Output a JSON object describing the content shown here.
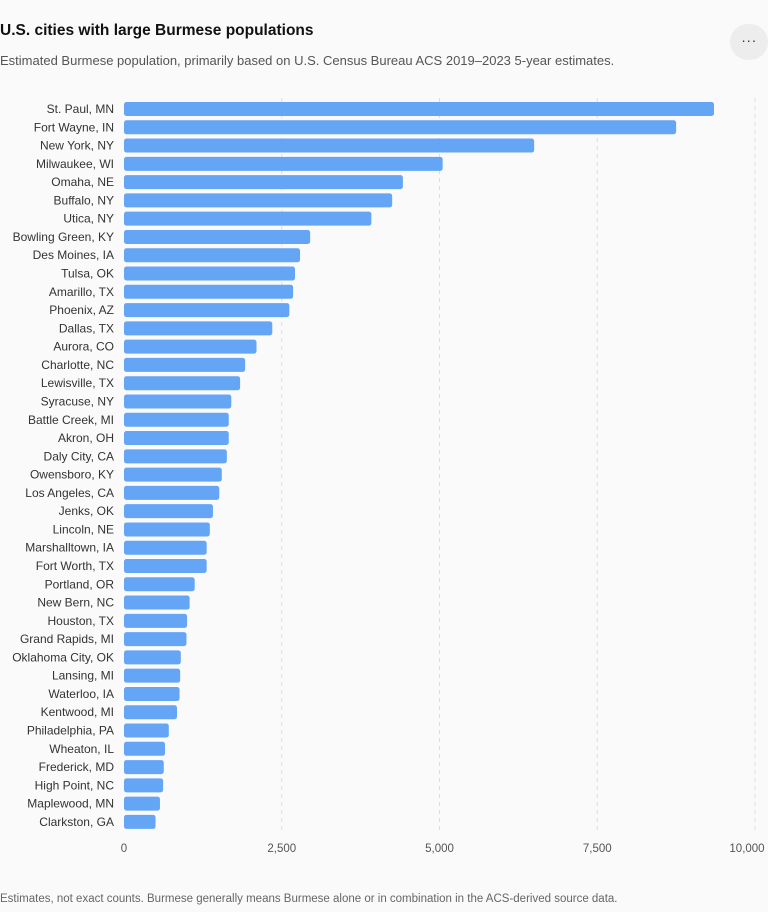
{
  "header": {
    "title": "U.S. cities with large Burmese populations",
    "subtitle": "Estimated Burmese population, primarily based on U.S. Census Bureau ACS 2019–2023 5-year estimates.",
    "more_label": "···"
  },
  "footnote": "Estimates, not exact counts. Burmese generally means Burmese alone or in combination in the ACS-derived source data.",
  "colors": {
    "bar": "#64a5f5",
    "grid": "#dddddd",
    "background": "#fafafa"
  },
  "chart_data": {
    "type": "bar",
    "orientation": "horizontal",
    "title": "U.S. cities with large Burmese populations",
    "xlabel": "",
    "ylabel": "",
    "xlim": [
      0,
      10000
    ],
    "grid": true,
    "x_ticks": [
      0,
      2500,
      5000,
      7500,
      10000
    ],
    "x_tick_labels": [
      "0",
      "2,500",
      "5,000",
      "7,500",
      "10,000"
    ],
    "categories": [
      "St. Paul, MN",
      "Fort Wayne, IN",
      "New York, NY",
      "Milwaukee, WI",
      "Omaha, NE",
      "Buffalo, NY",
      "Utica, NY",
      "Bowling Green, KY",
      "Des Moines, IA",
      "Tulsa, OK",
      "Amarillo, TX",
      "Phoenix, AZ",
      "Dallas, TX",
      "Aurora, CO",
      "Charlotte, NC",
      "Lewisville, TX",
      "Syracuse, NY",
      "Battle Creek, MI",
      "Akron, OH",
      "Daly City, CA",
      "Owensboro, KY",
      "Los Angeles, CA",
      "Jenks, OK",
      "Lincoln, NE",
      "Marshalltown, IA",
      "Fort Worth, TX",
      "Portland, OR",
      "New Bern, NC",
      "Houston, TX",
      "Grand Rapids, MI",
      "Oklahoma City, OK",
      "Lansing, MI",
      "Waterloo, IA",
      "Kentwood, MI",
      "Philadelphia, PA",
      "Wheaton, IL",
      "Frederick, MD",
      "High Point, NC",
      "Maplewood, MN",
      "Clarkston, GA"
    ],
    "values": [
      9350,
      8750,
      6500,
      5050,
      4420,
      4250,
      3920,
      2950,
      2790,
      2710,
      2680,
      2620,
      2350,
      2100,
      1920,
      1840,
      1700,
      1660,
      1660,
      1630,
      1550,
      1510,
      1410,
      1360,
      1310,
      1310,
      1120,
      1040,
      1000,
      990,
      900,
      890,
      880,
      840,
      710,
      650,
      630,
      620,
      570,
      500
    ]
  }
}
